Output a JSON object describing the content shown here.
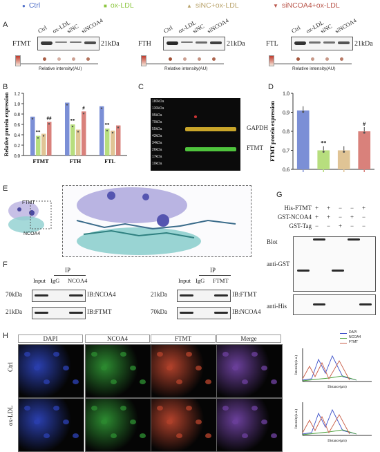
{
  "legend": [
    {
      "label": "Ctrl",
      "color": "#4f6fc9",
      "marker": "circle"
    },
    {
      "label": "ox-LDL",
      "color": "#8cc63f",
      "marker": "square"
    },
    {
      "label": "siNC+ox-LDL",
      "color": "#b9a36b",
      "marker": "triangle-up"
    },
    {
      "label": "siNCOA4+ox-LDL",
      "color": "#b9554a",
      "marker": "triangle-down"
    }
  ],
  "panelA": {
    "letter": "A",
    "lanes": [
      "Ctrl",
      "ox-LDL",
      "siNC",
      "siNCOA4"
    ],
    "blots": [
      {
        "protein": "FTMT",
        "kda": "21kDa",
        "intensity": [
          0.9,
          0.35,
          0.45,
          0.75
        ]
      },
      {
        "protein": "FTH",
        "kda": "21kDa",
        "intensity": [
          1.0,
          0.45,
          0.55,
          0.85
        ]
      },
      {
        "protein": "FTL",
        "kda": "21kDa",
        "intensity": [
          0.95,
          0.5,
          0.5,
          0.7
        ]
      }
    ],
    "scale_label": "Relative intensity(AU)"
  },
  "panelB": {
    "letter": "B",
    "ylabel": "Relative protein expression",
    "annotations": [
      "**",
      "##",
      "**",
      "#",
      "**"
    ]
  },
  "panelC": {
    "letter": "C",
    "labels": [
      "GAPDH",
      "FTMT"
    ],
    "markers": [
      "180kDa",
      "130kDa",
      "95kDa",
      "70kDa",
      "55kDa",
      "43kDa",
      "34kDa",
      "26kDa",
      "17kDa",
      "10kDa"
    ]
  },
  "panelD": {
    "letter": "D",
    "ylabel": "FTMT protein expression",
    "annotations": [
      "**",
      "#"
    ]
  },
  "panelE": {
    "letter": "E",
    "labels": [
      "FTMT",
      "NCOA4"
    ]
  },
  "panelF": {
    "letter": "F",
    "left": {
      "header": "IP",
      "cols": [
        "Input",
        "IgG",
        "NCOA4"
      ],
      "rows": [
        {
          "kda": "70kDa",
          "ib": "IB:NCOA4"
        },
        {
          "kda": "21kDa",
          "ib": "IB:FTMT"
        }
      ]
    },
    "right": {
      "header": "IP",
      "cols": [
        "Input",
        "IgG",
        "FTMT"
      ],
      "rows": [
        {
          "kda": "21kDa",
          "ib": "IB:FTMT"
        },
        {
          "kda": "70kDa",
          "ib": "IB:NCOA4"
        }
      ]
    }
  },
  "panelG": {
    "letter": "G",
    "rows": [
      {
        "label": "His-FTMT",
        "signs": [
          "+",
          "+",
          "−",
          "−",
          "+"
        ]
      },
      {
        "label": "GST-NCOA4",
        "signs": [
          "+",
          "+",
          "−",
          "+",
          "−"
        ]
      },
      {
        "label": "GST-Tag",
        "signs": [
          "−",
          "−",
          "+",
          "−",
          "−"
        ]
      }
    ],
    "blot_label": "Blot",
    "gst_label": "anti-GST",
    "his_label": "anti-His"
  },
  "panelH": {
    "letter": "H",
    "columns": [
      "DAPI",
      "NCOA4",
      "FTMT",
      "Merge"
    ],
    "rows": [
      "Ctrl",
      "ox-LDL"
    ],
    "legend": [
      "DAPI",
      "NCOA4",
      "FTMT"
    ],
    "xlabel": "Distance(μm)",
    "ylabel": "Intensity(a.u.)"
  },
  "chart_data": [
    {
      "type": "bar",
      "panel": "B",
      "categories": [
        "FTMT",
        "FTH",
        "FTL"
      ],
      "ylabel": "Relative protein expression",
      "ylim": [
        0,
        1.2
      ],
      "yticks": [
        "0.0",
        "0.2",
        "0.4",
        "0.6",
        "0.8",
        "1.0",
        "1.2"
      ],
      "series": [
        {
          "name": "Ctrl",
          "values": [
            0.75,
            1.02,
            0.95
          ],
          "color": "#7b8fd6"
        },
        {
          "name": "ox-LDL",
          "values": [
            0.38,
            0.6,
            0.52
          ],
          "color": "#b7de7e"
        },
        {
          "name": "siNC+ox-LDL",
          "values": [
            0.42,
            0.5,
            0.48
          ],
          "color": "#e0c495"
        },
        {
          "name": "siNCOA4+ox-LDL",
          "values": [
            0.65,
            0.85,
            0.58
          ],
          "color": "#d9817b"
        }
      ]
    },
    {
      "type": "bar",
      "panel": "D",
      "categories": [
        "Ctrl",
        "ox-LDL",
        "siNC+ox-LDL",
        "siNCOA4+ox-LDL"
      ],
      "ylabel": "FTMT protein expression",
      "ylim": [
        0.6,
        1.0
      ],
      "yticks": [
        "0.6",
        "0.7",
        "0.8",
        "0.9",
        "1.0"
      ],
      "values": [
        0.91,
        0.7,
        0.7,
        0.8
      ],
      "colors": [
        "#7b8fd6",
        "#b7de7e",
        "#e0c495",
        "#d9817b"
      ]
    }
  ]
}
